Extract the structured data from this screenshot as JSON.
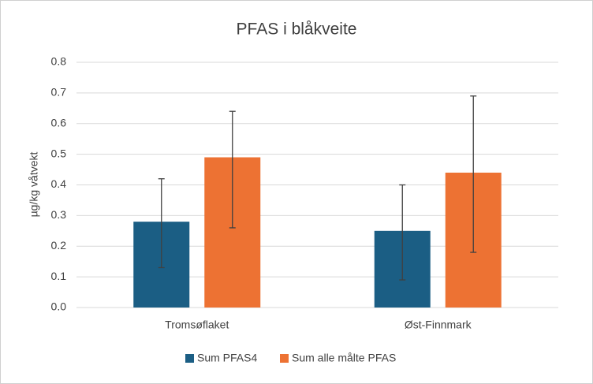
{
  "chart_data": {
    "type": "bar",
    "title": "PFAS i blåkveite",
    "y_label": "µg/kg våtvekt",
    "categories": [
      "Tromsøflaket",
      "Øst-Finnmark"
    ],
    "series": [
      {
        "name": "Sum PFAS4",
        "color": "#1b5e84",
        "values": [
          0.28,
          0.25
        ],
        "errors_plus": [
          0.14,
          0.15
        ],
        "errors_minus": [
          0.15,
          0.16
        ]
      },
      {
        "name": "Sum alle målte PFAS",
        "color": "#ed7233",
        "values": [
          0.49,
          0.44
        ],
        "errors_plus": [
          0.15,
          0.25
        ],
        "errors_minus": [
          0.23,
          0.26
        ]
      }
    ],
    "ylim": [
      0,
      0.8
    ],
    "yticks": [
      {
        "value": 0,
        "label": "0.0"
      },
      0.1,
      0.2,
      0.3,
      0.4,
      0.5,
      0.6,
      0.7,
      0.8
    ],
    "grid": true,
    "legend": "bottom"
  }
}
